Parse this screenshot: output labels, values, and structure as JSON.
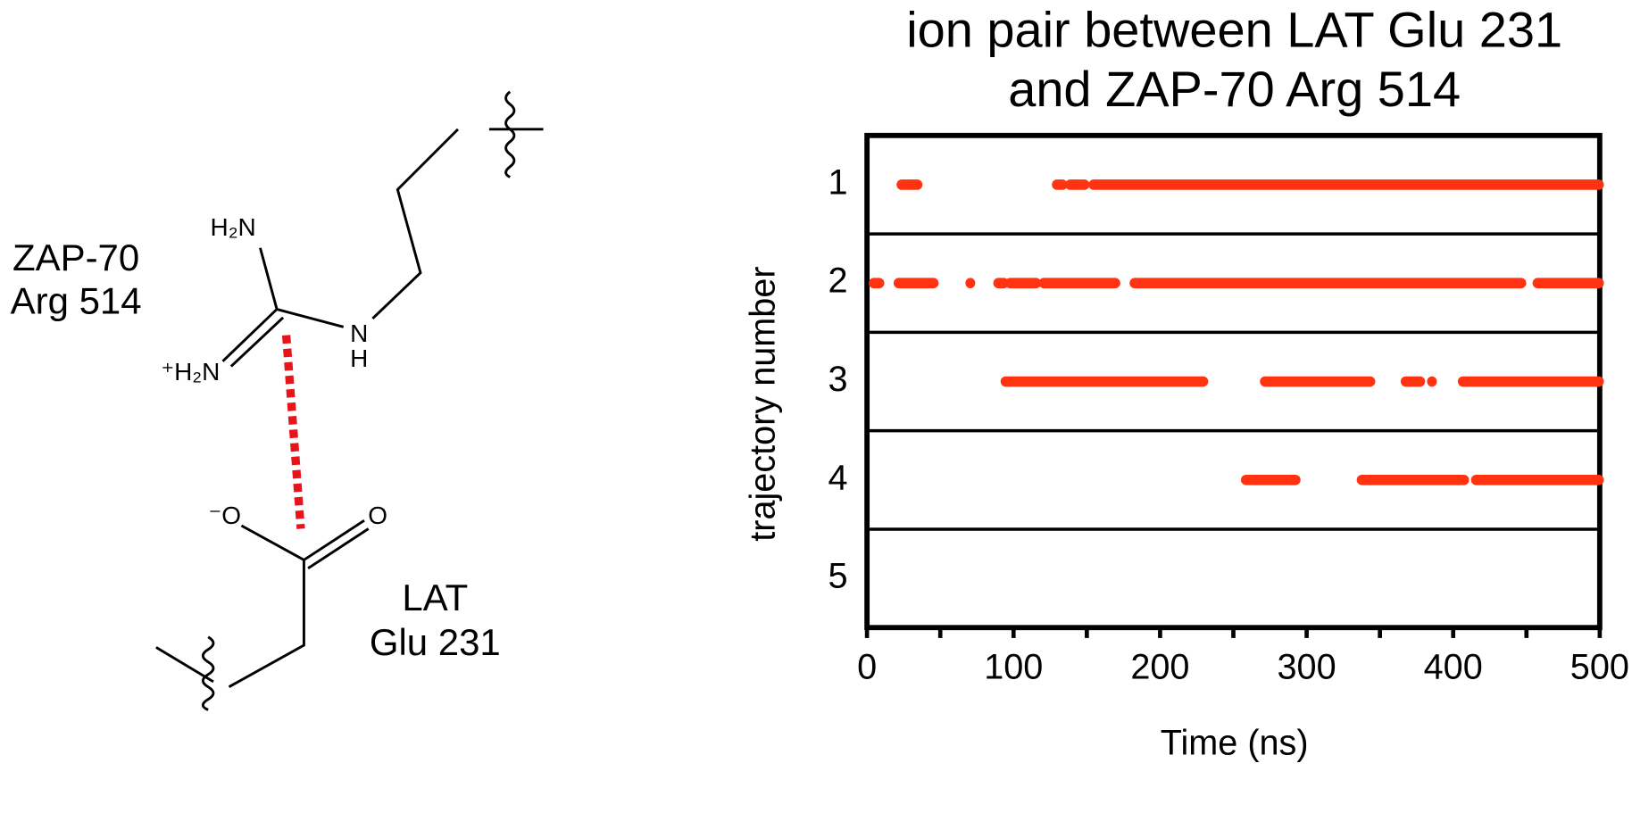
{
  "chart_data": {
    "type": "interval",
    "title": [
      "ion pair between LAT Glu 231",
      "and ZAP-70 Arg 514"
    ],
    "x_label": "Time (ns)",
    "y_label": "trajectory number",
    "categories": [
      "1",
      "2",
      "3",
      "4",
      "5"
    ],
    "values": [
      [
        [
          23,
          35
        ],
        [
          129,
          134
        ],
        [
          138,
          149
        ],
        [
          154,
          500
        ]
      ],
      [
        [
          4,
          9
        ],
        [
          21,
          46
        ],
        [
          70,
          71
        ],
        [
          89,
          94
        ],
        [
          97,
          116
        ],
        [
          120,
          170
        ],
        [
          182,
          447
        ],
        [
          457,
          500
        ]
      ],
      [
        [
          94,
          230
        ],
        [
          271,
          344
        ],
        [
          367,
          378
        ],
        [
          385,
          386
        ],
        [
          406,
          500
        ]
      ],
      [
        [
          258,
          293
        ],
        [
          337,
          408
        ],
        [
          415,
          500
        ]
      ],
      []
    ],
    "color": "#ff3311",
    "xlim": [
      0,
      500
    ],
    "xticks": [
      0,
      100,
      200,
      300,
      400,
      500
    ],
    "xminorticks": [
      50,
      150,
      250,
      350,
      450
    ]
  },
  "diagram": {
    "residue_labels": [
      [
        "ZAP-70",
        "Arg 514"
      ],
      [
        "LAT",
        "Glu 231"
      ]
    ],
    "atoms": [
      "H₂N",
      "⁺H₂N",
      "N",
      "H",
      "⁻O",
      "O"
    ]
  }
}
